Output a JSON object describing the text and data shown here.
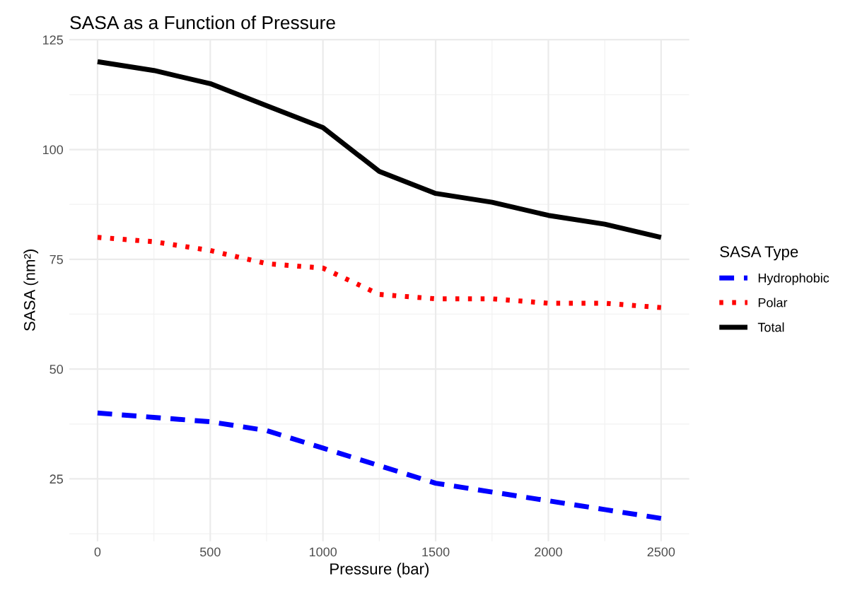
{
  "chart_data": {
    "type": "line",
    "title": "SASA as a Function of Pressure",
    "xlabel": "Pressure (bar)",
    "ylabel": "SASA (nm²)",
    "legend_title": "SASA Type",
    "x": [
      0,
      250,
      500,
      750,
      1000,
      1250,
      1500,
      1750,
      2000,
      2250,
      2500
    ],
    "series": [
      {
        "name": "Hydrophobic",
        "color": "#0000ff",
        "line_style": "dashed",
        "values": [
          40,
          39,
          38,
          36,
          32,
          28,
          24,
          22,
          20,
          18,
          16
        ]
      },
      {
        "name": "Polar",
        "color": "#ff0000",
        "line_style": "dotted",
        "values": [
          80,
          79,
          77,
          74,
          73,
          67,
          66,
          66,
          65,
          65,
          64
        ]
      },
      {
        "name": "Total",
        "color": "#000000",
        "line_style": "solid",
        "values": [
          120,
          118,
          115,
          110,
          105,
          95,
          90,
          88,
          85,
          83,
          80
        ]
      }
    ],
    "xlim": [
      -125,
      2625
    ],
    "ylim": [
      10.8,
      125.2
    ],
    "xticks": [
      0,
      500,
      1000,
      1500,
      2000,
      2500
    ],
    "yticks": [
      25,
      50,
      75,
      100,
      125
    ],
    "grid": true,
    "legend": "right",
    "marker": "none"
  }
}
